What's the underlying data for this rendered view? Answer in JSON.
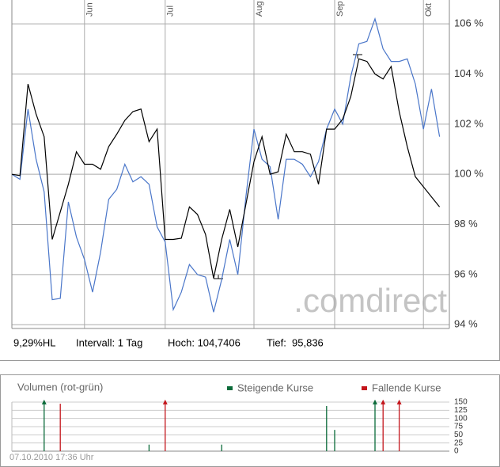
{
  "chart_data": [
    {
      "type": "line",
      "categories": [
        null,
        null,
        null,
        null,
        null,
        null,
        null,
        null,
        null,
        "Jun",
        null,
        null,
        null,
        null,
        null,
        null,
        null,
        null,
        null,
        "Jul",
        null,
        null,
        null,
        null,
        null,
        null,
        null,
        null,
        null,
        null,
        "Aug",
        null,
        null,
        null,
        null,
        null,
        null,
        null,
        null,
        null,
        "Sep",
        null,
        null,
        null,
        null,
        null,
        null,
        null,
        null,
        null,
        null,
        "Okt",
        null,
        null
      ],
      "series": [
        {
          "color": "#000000",
          "values": [
            100.0,
            99.95,
            103.6,
            102.4,
            101.5,
            97.4,
            98.5,
            99.6,
            100.9,
            100.4,
            100.4,
            100.2,
            101.1,
            101.6,
            102.15,
            102.5,
            102.6,
            101.3,
            101.8,
            97.4,
            97.4,
            97.45,
            98.7,
            98.4,
            97.6,
            95.85,
            97.4,
            98.6,
            97.1,
            98.8,
            100.5,
            101.5,
            100.0,
            100.1,
            101.6,
            100.9,
            100.9,
            100.8,
            99.6,
            101.8,
            101.8,
            102.2,
            103.1,
            104.6,
            104.5,
            104.0,
            103.8,
            104.3,
            102.5,
            101.1,
            99.9,
            99.5,
            99.1,
            98.7
          ]
        },
        {
          "color": "#4a76c9",
          "values": [
            100.0,
            99.8,
            102.6,
            100.6,
            99.3,
            95.0,
            95.05,
            98.9,
            97.5,
            96.6,
            95.3,
            96.9,
            99.0,
            99.4,
            100.4,
            99.7,
            99.9,
            99.6,
            97.9,
            97.3,
            94.6,
            95.3,
            96.4,
            96.0,
            95.9,
            94.5,
            95.8,
            97.4,
            96.0,
            99.1,
            101.8,
            100.6,
            100.3,
            98.2,
            100.6,
            100.6,
            100.4,
            99.9,
            100.5,
            101.8,
            102.6,
            102.0,
            103.9,
            105.2,
            105.3,
            106.2,
            105.0,
            104.5,
            104.5,
            104.6,
            103.6,
            101.8,
            103.4,
            101.5
          ]
        }
      ],
      "ylim": [
        93.85,
        106.95
      ],
      "yticks": [
        {
          "value": 94,
          "label": "94 %"
        },
        {
          "value": 96,
          "label": "96 %"
        },
        {
          "value": 98,
          "label": "98 %"
        },
        {
          "value": 100,
          "label": "100 %"
        },
        {
          "value": 102,
          "label": "102 %"
        },
        {
          "value": 104,
          "label": "104 %"
        },
        {
          "value": 106,
          "label": "106 %"
        }
      ],
      "grid": true,
      "watermark": ".comdirect",
      "annotations": [
        "9,29%HL",
        "Intervall: 1 Tag",
        "Hoch: 104,7406",
        "Tief:  95,836"
      ]
    },
    {
      "type": "bar",
      "title": "Volumen (rot-grün)",
      "categories": [
        null,
        null,
        null,
        null,
        null,
        null,
        null,
        null,
        null,
        null,
        null,
        null,
        null,
        null,
        null,
        null,
        null,
        null,
        null,
        null,
        null,
        null,
        null,
        null,
        null,
        null,
        null,
        null,
        null,
        null,
        null,
        null,
        null,
        null,
        null,
        null,
        null,
        null,
        null,
        null,
        null,
        null,
        null,
        null,
        null,
        null,
        null,
        null,
        null,
        null,
        null,
        null,
        null,
        null
      ],
      "series": [
        {
          "name": "Steigende Kurse",
          "color": "#0b6b3a",
          "values": [
            null,
            null,
            null,
            null,
            155,
            null,
            null,
            null,
            null,
            null,
            null,
            null,
            null,
            null,
            null,
            null,
            null,
            20,
            null,
            null,
            null,
            null,
            null,
            null,
            null,
            null,
            20,
            null,
            null,
            null,
            null,
            null,
            null,
            null,
            null,
            null,
            null,
            null,
            null,
            138,
            65,
            null,
            null,
            null,
            null,
            155,
            null,
            null,
            null,
            null,
            null,
            null,
            null,
            null
          ]
        },
        {
          "name": "Fallende Kurse",
          "color": "#c4161c",
          "values": [
            null,
            null,
            null,
            null,
            null,
            null,
            145,
            null,
            null,
            null,
            null,
            null,
            null,
            null,
            null,
            null,
            null,
            null,
            null,
            155,
            null,
            null,
            null,
            null,
            null,
            null,
            null,
            null,
            null,
            null,
            null,
            null,
            null,
            null,
            null,
            null,
            null,
            null,
            null,
            null,
            null,
            null,
            null,
            null,
            null,
            null,
            155,
            null,
            155,
            null,
            null,
            null,
            null,
            null
          ]
        }
      ],
      "ylim": [
        0,
        155
      ],
      "yticks": [
        0,
        25,
        50,
        75,
        100,
        125,
        150
      ],
      "grid": true,
      "footnote": "07.10.2010 17:36 Uhr"
    }
  ]
}
